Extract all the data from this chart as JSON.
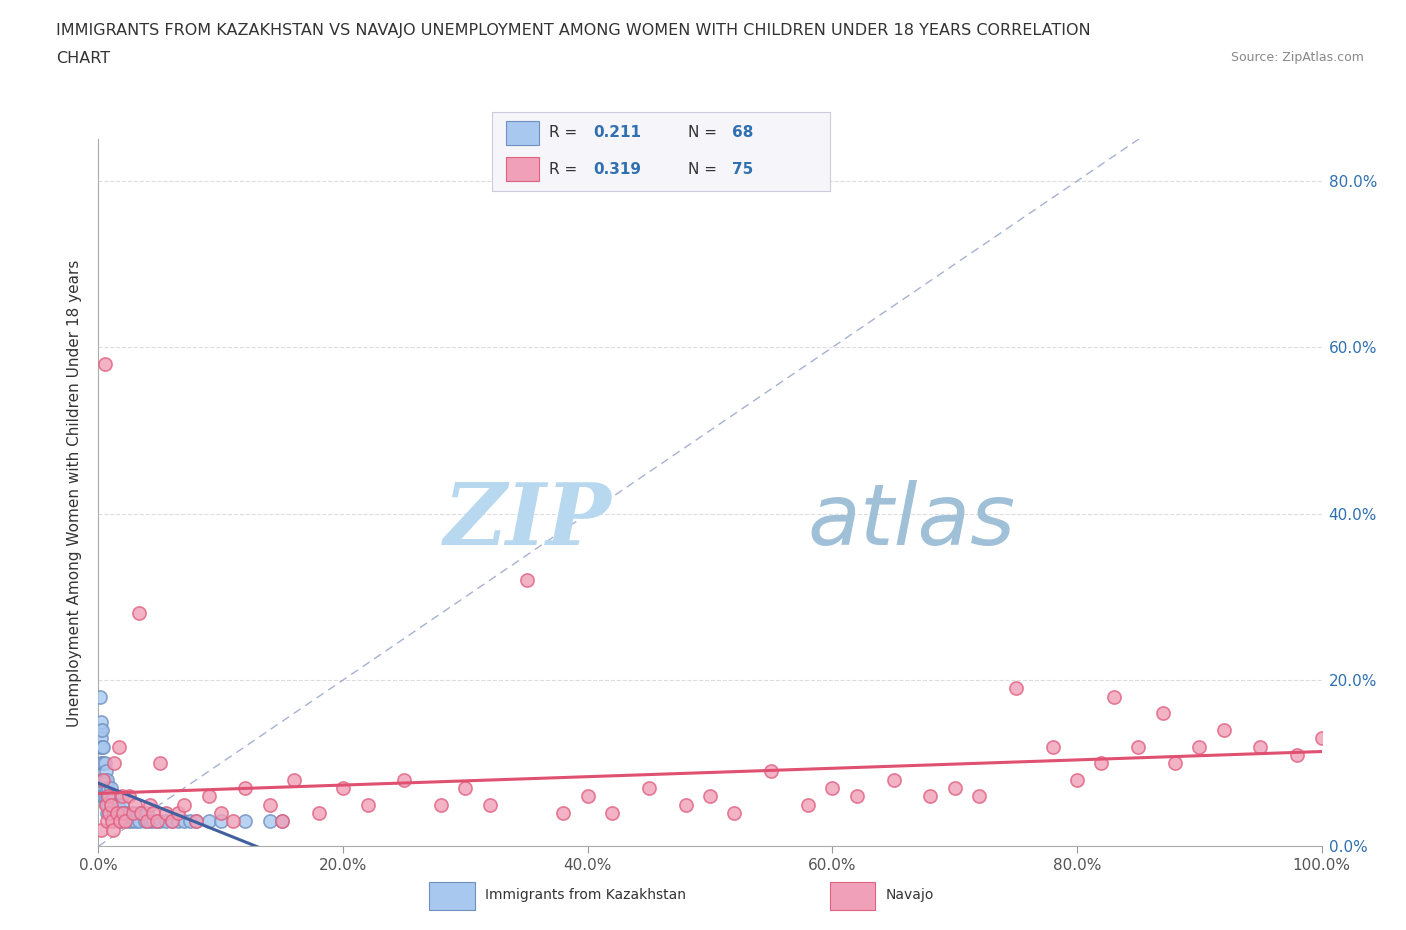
{
  "title_line1": "IMMIGRANTS FROM KAZAKHSTAN VS NAVAJO UNEMPLOYMENT AMONG WOMEN WITH CHILDREN UNDER 18 YEARS CORRELATION",
  "title_line2": "CHART",
  "source_text": "Source: ZipAtlas.com",
  "ylabel": "Unemployment Among Women with Children Under 18 years",
  "color_kaz": "#A8C8F0",
  "color_kaz_edge": "#7090C0",
  "color_navajo": "#F0A0B8",
  "color_navajo_edge": "#E06080",
  "color_kaz_line": "#4060A0",
  "color_navajo_line": "#E05070",
  "color_diag_line": "#8090C0",
  "background_color": "#FFFFFF",
  "watermark_zip": "ZIP",
  "watermark_atlas": "atlas",
  "watermark_color_zip": "#B8D8F0",
  "watermark_color_atlas": "#A0C0D8",
  "legend_box_color": "#F5F5FA",
  "legend_border_color": "#CCCCDD",
  "ytick_color": "#3070B0",
  "xtick_color": "#555555",
  "grid_color": "#DDDDDD",
  "kaz_scatter_x": [
    0.001,
    0.001,
    0.001,
    0.002,
    0.002,
    0.002,
    0.002,
    0.003,
    0.003,
    0.003,
    0.003,
    0.003,
    0.004,
    0.004,
    0.004,
    0.004,
    0.005,
    0.005,
    0.005,
    0.006,
    0.006,
    0.006,
    0.007,
    0.007,
    0.007,
    0.008,
    0.008,
    0.009,
    0.009,
    0.01,
    0.01,
    0.011,
    0.012,
    0.013,
    0.013,
    0.014,
    0.015,
    0.016,
    0.017,
    0.018,
    0.019,
    0.02,
    0.022,
    0.024,
    0.025,
    0.027,
    0.028,
    0.03,
    0.032,
    0.033,
    0.035,
    0.038,
    0.04,
    0.042,
    0.045,
    0.048,
    0.05,
    0.055,
    0.06,
    0.065,
    0.07,
    0.075,
    0.08,
    0.09,
    0.1,
    0.12,
    0.14,
    0.15
  ],
  "kaz_scatter_y": [
    0.18,
    0.14,
    0.12,
    0.15,
    0.13,
    0.1,
    0.08,
    0.14,
    0.12,
    0.1,
    0.08,
    0.06,
    0.12,
    0.1,
    0.08,
    0.06,
    0.1,
    0.08,
    0.06,
    0.09,
    0.07,
    0.05,
    0.08,
    0.06,
    0.04,
    0.07,
    0.05,
    0.06,
    0.04,
    0.07,
    0.05,
    0.06,
    0.05,
    0.06,
    0.04,
    0.05,
    0.04,
    0.05,
    0.04,
    0.03,
    0.05,
    0.04,
    0.04,
    0.03,
    0.04,
    0.03,
    0.04,
    0.03,
    0.04,
    0.03,
    0.04,
    0.03,
    0.04,
    0.03,
    0.03,
    0.03,
    0.03,
    0.03,
    0.03,
    0.03,
    0.03,
    0.03,
    0.03,
    0.03,
    0.03,
    0.03,
    0.03,
    0.03
  ],
  "navajo_scatter_x": [
    0.002,
    0.004,
    0.005,
    0.006,
    0.007,
    0.008,
    0.009,
    0.01,
    0.011,
    0.012,
    0.013,
    0.015,
    0.017,
    0.018,
    0.019,
    0.02,
    0.022,
    0.025,
    0.028,
    0.03,
    0.033,
    0.035,
    0.04,
    0.042,
    0.045,
    0.048,
    0.05,
    0.055,
    0.06,
    0.065,
    0.07,
    0.08,
    0.09,
    0.1,
    0.11,
    0.12,
    0.14,
    0.15,
    0.16,
    0.18,
    0.2,
    0.22,
    0.25,
    0.28,
    0.3,
    0.32,
    0.35,
    0.38,
    0.4,
    0.42,
    0.45,
    0.48,
    0.5,
    0.52,
    0.55,
    0.58,
    0.6,
    0.62,
    0.65,
    0.68,
    0.7,
    0.72,
    0.75,
    0.78,
    0.8,
    0.82,
    0.85,
    0.88,
    0.9,
    0.92,
    0.95,
    0.98,
    1.0,
    0.83,
    0.87
  ],
  "navajo_scatter_y": [
    0.02,
    0.08,
    0.58,
    0.05,
    0.03,
    0.06,
    0.04,
    0.05,
    0.03,
    0.02,
    0.1,
    0.04,
    0.12,
    0.03,
    0.06,
    0.04,
    0.03,
    0.06,
    0.04,
    0.05,
    0.28,
    0.04,
    0.03,
    0.05,
    0.04,
    0.03,
    0.1,
    0.04,
    0.03,
    0.04,
    0.05,
    0.03,
    0.06,
    0.04,
    0.03,
    0.07,
    0.05,
    0.03,
    0.08,
    0.04,
    0.07,
    0.05,
    0.08,
    0.05,
    0.07,
    0.05,
    0.32,
    0.04,
    0.06,
    0.04,
    0.07,
    0.05,
    0.06,
    0.04,
    0.09,
    0.05,
    0.07,
    0.06,
    0.08,
    0.06,
    0.07,
    0.06,
    0.19,
    0.12,
    0.08,
    0.1,
    0.12,
    0.1,
    0.12,
    0.14,
    0.12,
    0.11,
    0.13,
    0.18,
    0.16
  ]
}
